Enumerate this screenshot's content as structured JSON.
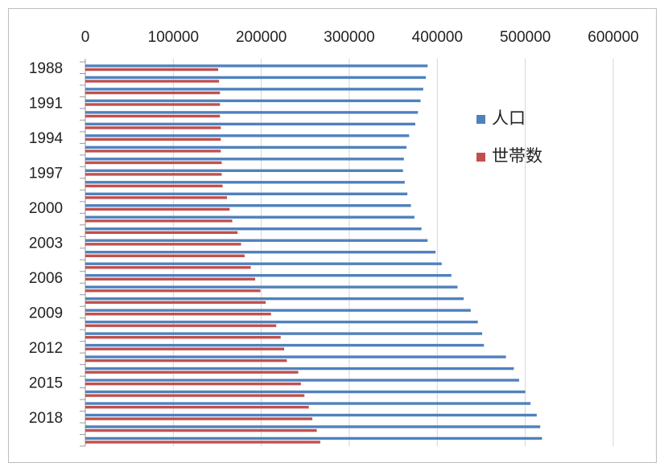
{
  "chart_data": {
    "type": "bar",
    "orientation": "horizontal",
    "x_axis_position": "top",
    "grid": true,
    "legend_position": "right",
    "xlim": [
      0,
      600000
    ],
    "x_ticks": [
      "0",
      "100000",
      "200000",
      "300000",
      "400000",
      "500000",
      "600000"
    ],
    "y_tick_labels": [
      "1988",
      "1991",
      "1994",
      "1997",
      "2000",
      "2003",
      "2006",
      "2009",
      "2012",
      "2015",
      "2018"
    ],
    "categories": [
      1988,
      1989,
      1990,
      1991,
      1992,
      1993,
      1994,
      1995,
      1996,
      1997,
      1998,
      1999,
      2000,
      2001,
      2002,
      2003,
      2004,
      2005,
      2006,
      2007,
      2008,
      2009,
      2010,
      2011,
      2012,
      2013,
      2014,
      2015,
      2016,
      2017,
      2018,
      2019,
      2020
    ],
    "series": [
      {
        "name": "人口",
        "color": "#4f81bd",
        "values": [
          389000,
          387000,
          384000,
          381000,
          378000,
          375000,
          368000,
          365000,
          362000,
          361000,
          363000,
          366000,
          370000,
          374000,
          382000,
          389000,
          398000,
          405000,
          416000,
          423000,
          430000,
          438000,
          446000,
          451000,
          453000,
          478000,
          487000,
          493000,
          500000,
          506000,
          513000,
          517000,
          519000
        ]
      },
      {
        "name": "世帯数",
        "color": "#c0504d",
        "values": [
          151000,
          152000,
          153000,
          153000,
          153000,
          154000,
          154000,
          154000,
          155000,
          155000,
          156000,
          161000,
          164000,
          167000,
          173000,
          177000,
          181000,
          188000,
          193000,
          199000,
          205000,
          211000,
          217000,
          222000,
          226000,
          229000,
          242000,
          245000,
          249000,
          254000,
          258000,
          263000,
          267000
        ]
      }
    ]
  }
}
